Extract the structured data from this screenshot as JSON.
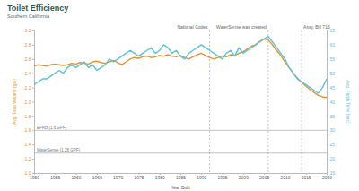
{
  "chart_data": {
    "type": "line",
    "title": "Toilet Efficiency",
    "subtitle": "Southern California",
    "xlabel": "Year Built",
    "ylabel": "Avg. Total Volume (gal)",
    "y2label": "Avg. Flush Time (sec)",
    "x": [
      1950,
      1951,
      1952,
      1953,
      1954,
      1955,
      1956,
      1957,
      1958,
      1959,
      1960,
      1961,
      1962,
      1963,
      1964,
      1965,
      1966,
      1967,
      1968,
      1969,
      1970,
      1971,
      1972,
      1973,
      1974,
      1975,
      1976,
      1977,
      1978,
      1979,
      1980,
      1981,
      1982,
      1983,
      1984,
      1985,
      1986,
      1987,
      1988,
      1989,
      1990,
      1991,
      1992,
      1993,
      1994,
      1995,
      1996,
      1997,
      1998,
      1999,
      2000,
      2001,
      2002,
      2003,
      2004,
      2005,
      2006,
      2007,
      2008,
      2009,
      2010,
      2011,
      2012,
      2013,
      2014,
      2015,
      2016,
      2017,
      2018,
      2019,
      2020
    ],
    "xlim": [
      1950,
      2020
    ],
    "xticks": [
      1950,
      1955,
      1960,
      1965,
      1970,
      1975,
      1980,
      1985,
      1990,
      1995,
      2000,
      2005,
      2010,
      2015,
      2020
    ],
    "ylim": [
      1.0,
      3.0
    ],
    "yticks": [
      {
        "value": 1.0,
        "label": "1.0"
      },
      1.2,
      1.4,
      1.6,
      1.8,
      {
        "value": 2.0,
        "label": "2.0"
      },
      2.2,
      2.4,
      2.6,
      2.8,
      {
        "value": 3.0,
        "label": "3.0"
      }
    ],
    "y2lim": [
      15,
      65
    ],
    "y2ticks": [
      15,
      20,
      25,
      30,
      35,
      40,
      45,
      50,
      55,
      60,
      65
    ],
    "grid": false,
    "series": [
      {
        "color": "#e8912d",
        "values": [
          2.5,
          2.52,
          2.51,
          2.5,
          2.52,
          2.53,
          2.52,
          2.51,
          2.52,
          2.54,
          2.53,
          2.55,
          2.54,
          2.53,
          2.56,
          2.57,
          2.55,
          2.54,
          2.56,
          2.58,
          2.55,
          2.52,
          2.56,
          2.6,
          2.62,
          2.61,
          2.63,
          2.64,
          2.62,
          2.63,
          2.65,
          2.64,
          2.66,
          2.64,
          2.63,
          2.65,
          2.62,
          2.6,
          2.63,
          2.66,
          2.68,
          2.65,
          2.62,
          2.6,
          2.62,
          2.64,
          2.63,
          2.66,
          2.65,
          2.68,
          2.7,
          2.74,
          2.78,
          2.8,
          2.85,
          2.88,
          2.87,
          2.8,
          2.72,
          2.65,
          2.56,
          2.48,
          2.4,
          2.33,
          2.27,
          2.22,
          2.17,
          2.13,
          2.09,
          2.07,
          2.06
        ]
      },
      {
        "color": "#5bc3dc",
        "axis": "y2",
        "values": [
          46,
          47,
          48,
          48,
          49,
          50,
          51,
          50,
          52,
          53,
          52,
          53,
          54,
          52,
          53,
          51,
          52,
          53,
          55,
          54,
          55,
          56,
          57,
          58,
          57,
          56,
          57,
          58,
          59,
          57,
          58,
          60,
          59,
          57,
          58,
          56,
          55,
          57,
          58,
          59,
          60,
          59,
          58,
          57,
          56,
          55,
          57,
          58,
          56,
          59,
          57,
          58,
          59,
          60,
          61,
          62,
          63,
          61,
          59,
          57,
          55,
          52,
          50,
          48,
          47,
          46,
          45,
          44,
          43,
          45,
          48
        ]
      }
    ],
    "reference_lines": [
      {
        "y": 1.6,
        "label": "EPAct (1.6 GPF)"
      },
      {
        "y": 1.28,
        "label": "WaterSense (1.28 GPF)"
      }
    ],
    "annotations": [
      {
        "x": 1992,
        "text": "National Codes"
      },
      {
        "x": 2006,
        "text": "WaterSense was created"
      },
      {
        "x": 2014,
        "text": "Assy. Bill 715"
      }
    ]
  }
}
